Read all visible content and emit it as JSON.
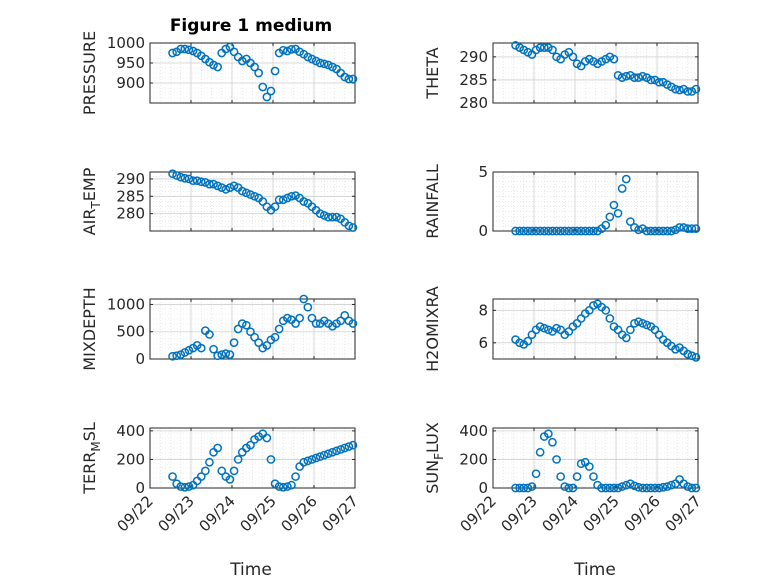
{
  "figure_title": "Figure 1 medium",
  "x_axis_label": "Time",
  "x_tick_labels": [
    "09/22",
    "09/23",
    "09/24",
    "09/25",
    "09/26",
    "09/27"
  ],
  "marker_color": "#0072BD",
  "chart_data": [
    {
      "type": "scatter",
      "title": "Figure 1 medium",
      "xlabel": "",
      "ylabel": "PRESSURE",
      "xlim": [
        0,
        5
      ],
      "ylim": [
        850,
        1000
      ],
      "yticks": [
        900,
        950,
        1000
      ],
      "grid": true,
      "x": [
        0.55,
        0.65,
        0.75,
        0.85,
        0.95,
        1.05,
        1.15,
        1.25,
        1.35,
        1.45,
        1.55,
        1.65,
        1.75,
        1.85,
        1.95,
        2.05,
        2.15,
        2.25,
        2.35,
        2.45,
        2.55,
        2.65,
        2.75,
        2.85,
        2.95,
        3.05,
        3.15,
        3.25,
        3.35,
        3.45,
        3.55,
        3.65,
        3.75,
        3.85,
        3.95,
        4.05,
        4.15,
        4.25,
        4.35,
        4.45,
        4.55,
        4.65,
        4.75,
        4.85,
        4.95
      ],
      "y": [
        975,
        978,
        985,
        985,
        983,
        980,
        975,
        968,
        960,
        952,
        945,
        940,
        975,
        985,
        990,
        978,
        965,
        955,
        960,
        950,
        940,
        925,
        890,
        865,
        880,
        930,
        975,
        982,
        980,
        984,
        985,
        978,
        972,
        965,
        960,
        955,
        950,
        948,
        945,
        940,
        935,
        925,
        915,
        910,
        910
      ]
    },
    {
      "type": "scatter",
      "title": "",
      "xlabel": "",
      "ylabel": "THETA",
      "xlim": [
        0,
        5
      ],
      "ylim": [
        280,
        293
      ],
      "yticks": [
        280,
        285,
        290
      ],
      "grid": true,
      "x": [
        0.55,
        0.65,
        0.75,
        0.85,
        0.95,
        1.05,
        1.15,
        1.25,
        1.35,
        1.45,
        1.55,
        1.65,
        1.75,
        1.85,
        1.95,
        2.05,
        2.15,
        2.25,
        2.35,
        2.45,
        2.55,
        2.65,
        2.75,
        2.85,
        2.95,
        3.05,
        3.15,
        3.25,
        3.35,
        3.45,
        3.55,
        3.65,
        3.75,
        3.85,
        3.95,
        4.05,
        4.15,
        4.25,
        4.35,
        4.45,
        4.55,
        4.65,
        4.75,
        4.85,
        4.95
      ],
      "y": [
        292.5,
        292,
        291.5,
        291,
        290.5,
        291.5,
        292,
        292,
        292,
        291.5,
        290,
        289.5,
        290.5,
        291,
        290,
        288.5,
        288,
        289,
        289.5,
        289,
        288.5,
        289,
        289.5,
        290,
        289.5,
        286,
        285.5,
        285.8,
        286,
        285.5,
        285.5,
        285.8,
        285.5,
        285,
        285,
        284.5,
        284.5,
        284,
        283.5,
        283,
        282.8,
        283,
        282.5,
        282.5,
        283
      ]
    },
    {
      "type": "scatter",
      "title": "",
      "xlabel": "",
      "ylabel": "AIR_TEMP",
      "xlim": [
        0,
        5
      ],
      "ylim": [
        275,
        292
      ],
      "yticks": [
        280,
        285,
        290
      ],
      "grid": true,
      "x": [
        0.55,
        0.65,
        0.75,
        0.85,
        0.95,
        1.05,
        1.15,
        1.25,
        1.35,
        1.45,
        1.55,
        1.65,
        1.75,
        1.85,
        1.95,
        2.05,
        2.15,
        2.25,
        2.35,
        2.45,
        2.55,
        2.65,
        2.75,
        2.85,
        2.95,
        3.05,
        3.15,
        3.25,
        3.35,
        3.45,
        3.55,
        3.65,
        3.75,
        3.85,
        3.95,
        4.05,
        4.15,
        4.25,
        4.35,
        4.45,
        4.55,
        4.65,
        4.75,
        4.85,
        4.95
      ],
      "y": [
        291.5,
        291,
        290.5,
        290.2,
        290,
        289.5,
        289.5,
        289.2,
        289,
        288.5,
        288.5,
        288,
        287.5,
        287,
        287.5,
        288,
        287.5,
        286.5,
        286,
        285.5,
        285,
        284.5,
        283.5,
        282,
        281,
        282,
        284,
        284,
        284.5,
        285,
        285.2,
        284.5,
        283.5,
        283,
        282,
        281,
        280,
        279.5,
        279,
        279,
        279,
        278.5,
        277.5,
        276.5,
        276
      ]
    },
    {
      "type": "scatter",
      "title": "",
      "xlabel": "",
      "ylabel": "RAINFALL",
      "xlim": [
        0,
        5
      ],
      "ylim": [
        0,
        5
      ],
      "yticks": [
        0,
        5
      ],
      "grid": true,
      "x": [
        0.55,
        0.65,
        0.75,
        0.85,
        0.95,
        1.05,
        1.15,
        1.25,
        1.35,
        1.45,
        1.55,
        1.65,
        1.75,
        1.85,
        1.95,
        2.05,
        2.15,
        2.25,
        2.35,
        2.45,
        2.55,
        2.65,
        2.75,
        2.85,
        2.95,
        3.05,
        3.15,
        3.25,
        3.35,
        3.45,
        3.55,
        3.65,
        3.75,
        3.85,
        3.95,
        4.05,
        4.15,
        4.25,
        4.35,
        4.45,
        4.55,
        4.65,
        4.75,
        4.85,
        4.95
      ],
      "y": [
        0,
        0,
        0,
        0,
        0,
        0,
        0,
        0,
        0,
        0,
        0,
        0,
        0,
        0,
        0,
        0,
        0,
        0,
        0,
        0,
        0,
        0.2,
        0.5,
        1.2,
        2.2,
        1.5,
        3.6,
        4.4,
        0.8,
        0.3,
        0.1,
        0.2,
        0,
        0,
        0,
        0,
        0,
        0,
        0,
        0.1,
        0.3,
        0.3,
        0.2,
        0.2,
        0.2
      ]
    },
    {
      "type": "scatter",
      "title": "",
      "xlabel": "",
      "ylabel": "MIXDEPTH",
      "xlim": [
        0,
        5
      ],
      "ylim": [
        0,
        1100
      ],
      "yticks": [
        0,
        500,
        1000
      ],
      "grid": true,
      "x": [
        0.55,
        0.65,
        0.75,
        0.85,
        0.95,
        1.05,
        1.15,
        1.25,
        1.35,
        1.45,
        1.55,
        1.65,
        1.75,
        1.85,
        1.95,
        2.05,
        2.15,
        2.25,
        2.35,
        2.45,
        2.55,
        2.65,
        2.75,
        2.85,
        2.95,
        3.05,
        3.15,
        3.25,
        3.35,
        3.45,
        3.55,
        3.65,
        3.75,
        3.85,
        3.95,
        4.05,
        4.15,
        4.25,
        4.35,
        4.45,
        4.55,
        4.65,
        4.75,
        4.85,
        4.95
      ],
      "y": [
        50,
        60,
        80,
        120,
        160,
        200,
        250,
        200,
        520,
        450,
        180,
        60,
        80,
        100,
        80,
        300,
        550,
        650,
        620,
        500,
        400,
        300,
        200,
        250,
        350,
        400,
        550,
        700,
        750,
        720,
        650,
        750,
        1100,
        950,
        750,
        650,
        650,
        700,
        650,
        600,
        650,
        700,
        800,
        700,
        650
      ]
    },
    {
      "type": "scatter",
      "title": "",
      "xlabel": "",
      "ylabel": "H2OMIXRA",
      "xlim": [
        0,
        5
      ],
      "ylim": [
        5,
        8.7
      ],
      "yticks": [
        6,
        8
      ],
      "grid": true,
      "x": [
        0.55,
        0.65,
        0.75,
        0.85,
        0.95,
        1.05,
        1.15,
        1.25,
        1.35,
        1.45,
        1.55,
        1.65,
        1.75,
        1.85,
        1.95,
        2.05,
        2.15,
        2.25,
        2.35,
        2.45,
        2.55,
        2.65,
        2.75,
        2.85,
        2.95,
        3.05,
        3.15,
        3.25,
        3.35,
        3.45,
        3.55,
        3.65,
        3.75,
        3.85,
        3.95,
        4.05,
        4.15,
        4.25,
        4.35,
        4.45,
        4.55,
        4.65,
        4.75,
        4.85,
        4.95
      ],
      "y": [
        6.2,
        6,
        5.9,
        6.1,
        6.5,
        6.8,
        7,
        6.9,
        6.8,
        6.7,
        6.9,
        6.8,
        6.5,
        6.7,
        7,
        7.2,
        7.5,
        7.8,
        8,
        8.3,
        8.4,
        8.2,
        8,
        7.5,
        7,
        6.8,
        6.5,
        6.3,
        6.8,
        7.2,
        7.3,
        7.2,
        7.1,
        7,
        6.8,
        6.5,
        6.2,
        6,
        5.8,
        5.6,
        5.7,
        5.5,
        5.3,
        5.2,
        5.1
      ]
    },
    {
      "type": "scatter",
      "title": "",
      "xlabel": "",
      "ylabel": "TERR_MSL",
      "xlim": [
        0,
        5
      ],
      "ylim": [
        0,
        420
      ],
      "yticks": [
        0,
        200,
        400
      ],
      "grid": true,
      "x": [
        0.55,
        0.65,
        0.75,
        0.85,
        0.95,
        1.05,
        1.15,
        1.25,
        1.35,
        1.45,
        1.55,
        1.65,
        1.75,
        1.85,
        1.95,
        2.05,
        2.15,
        2.25,
        2.35,
        2.45,
        2.55,
        2.65,
        2.75,
        2.85,
        2.95,
        3.05,
        3.15,
        3.25,
        3.35,
        3.45,
        3.55,
        3.65,
        3.75,
        3.85,
        3.95,
        4.05,
        4.15,
        4.25,
        4.35,
        4.45,
        4.55,
        4.65,
        4.75,
        4.85,
        4.95
      ],
      "y": [
        80,
        30,
        10,
        5,
        10,
        20,
        50,
        80,
        120,
        180,
        250,
        280,
        120,
        80,
        60,
        120,
        200,
        250,
        280,
        300,
        340,
        360,
        380,
        350,
        200,
        30,
        10,
        5,
        10,
        20,
        80,
        150,
        180,
        190,
        200,
        210,
        220,
        230,
        240,
        250,
        260,
        270,
        280,
        290,
        300
      ]
    },
    {
      "type": "scatter",
      "title": "",
      "xlabel": "",
      "ylabel": "SUN_FLUX",
      "xlim": [
        0,
        5
      ],
      "ylim": [
        0,
        420
      ],
      "yticks": [
        0,
        200,
        400
      ],
      "grid": true,
      "x": [
        0.55,
        0.65,
        0.75,
        0.85,
        0.95,
        1.05,
        1.15,
        1.25,
        1.35,
        1.45,
        1.55,
        1.65,
        1.75,
        1.85,
        1.95,
        2.05,
        2.15,
        2.25,
        2.35,
        2.45,
        2.55,
        2.65,
        2.75,
        2.85,
        2.95,
        3.05,
        3.15,
        3.25,
        3.35,
        3.45,
        3.55,
        3.65,
        3.75,
        3.85,
        3.95,
        4.05,
        4.15,
        4.25,
        4.35,
        4.45,
        4.55,
        4.65,
        4.75,
        4.85,
        4.95
      ],
      "y": [
        0,
        0,
        0,
        0,
        10,
        100,
        250,
        360,
        380,
        320,
        200,
        80,
        10,
        0,
        0,
        80,
        170,
        180,
        150,
        80,
        20,
        0,
        0,
        0,
        0,
        0,
        10,
        20,
        30,
        15,
        5,
        0,
        0,
        0,
        0,
        0,
        5,
        10,
        20,
        30,
        60,
        30,
        10,
        0,
        0
      ]
    }
  ]
}
